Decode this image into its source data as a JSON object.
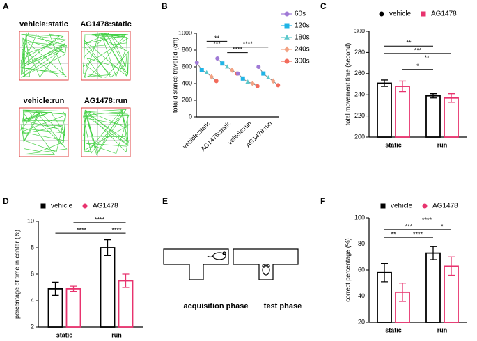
{
  "panel_a": {
    "label": "A",
    "images": [
      "vehicle:static",
      "AG1478:static",
      "vehicle:run",
      "AG1478:run"
    ]
  },
  "panel_e": {
    "label": "E",
    "phases": [
      "acquisition phase",
      "test phase"
    ]
  },
  "chart_data": [
    {
      "type": "line",
      "label": "B",
      "ylabel": "total distance traveled (cm)",
      "categories": [
        "vehicle:static",
        "AG1478:static",
        "vehicle:run",
        "AG1478:run"
      ],
      "series": [
        {
          "name": "60s",
          "color": "#a07ad6",
          "marker": "circle",
          "values": [
            650,
            700,
            520,
            600
          ]
        },
        {
          "name": "120s",
          "color": "#1fb4e6",
          "marker": "square",
          "values": [
            560,
            640,
            460,
            520
          ]
        },
        {
          "name": "180s",
          "color": "#5cc8cc",
          "marker": "triangle",
          "values": [
            530,
            600,
            420,
            470
          ]
        },
        {
          "name": "240s",
          "color": "#f2a283",
          "marker": "diamond",
          "values": [
            480,
            560,
            400,
            430
          ]
        },
        {
          "name": "300s",
          "color": "#f26b5b",
          "marker": "circle",
          "values": [
            430,
            520,
            370,
            380
          ]
        }
      ],
      "ylim": [
        0,
        1000
      ],
      "yticks": [
        0,
        200,
        400,
        600,
        800,
        1000
      ],
      "annotations": [
        "**",
        "***",
        "****",
        "****"
      ]
    },
    {
      "type": "bar",
      "label": "C",
      "ylabel": "total movement time (second)",
      "categories": [
        "static",
        "run"
      ],
      "series": [
        {
          "name": "vehicle",
          "color": "#000000",
          "marker": "circle",
          "values": [
            251,
            239
          ],
          "errors": [
            3,
            2
          ]
        },
        {
          "name": "AG1478",
          "color": "#e8336e",
          "marker": "square",
          "values": [
            248,
            237
          ],
          "errors": [
            5,
            4
          ]
        }
      ],
      "ylim": [
        200,
        300
      ],
      "yticks": [
        200,
        220,
        240,
        260,
        280,
        300
      ],
      "annotations": [
        "**",
        "***",
        "**",
        "*"
      ]
    },
    {
      "type": "bar",
      "label": "D",
      "ylabel": "percentage of time in center (%)",
      "categories": [
        "static",
        "run"
      ],
      "series": [
        {
          "name": "vehicle",
          "color": "#000000",
          "marker": "square",
          "values": [
            4.9,
            8.0
          ],
          "errors": [
            0.5,
            0.6
          ]
        },
        {
          "name": "AG1478",
          "color": "#e8336e",
          "marker": "circle",
          "values": [
            4.9,
            5.5
          ],
          "errors": [
            0.2,
            0.5
          ]
        }
      ],
      "ylim": [
        2,
        10
      ],
      "yticks": [
        2,
        4,
        6,
        8,
        10
      ],
      "annotations": [
        "****",
        "****",
        "****"
      ]
    },
    {
      "type": "bar",
      "label": "F",
      "ylabel": "correct percentage (%)",
      "categories": [
        "static",
        "run"
      ],
      "series": [
        {
          "name": "vehicle",
          "color": "#000000",
          "marker": "square",
          "values": [
            58,
            73
          ],
          "errors": [
            7,
            5
          ]
        },
        {
          "name": "AG1478",
          "color": "#e8336e",
          "marker": "circle",
          "values": [
            43,
            63
          ],
          "errors": [
            7,
            7
          ]
        }
      ],
      "ylim": [
        20,
        100
      ],
      "yticks": [
        20,
        40,
        60,
        80,
        100
      ],
      "annotations": [
        "**",
        "***",
        "****",
        "****",
        "*"
      ]
    }
  ]
}
